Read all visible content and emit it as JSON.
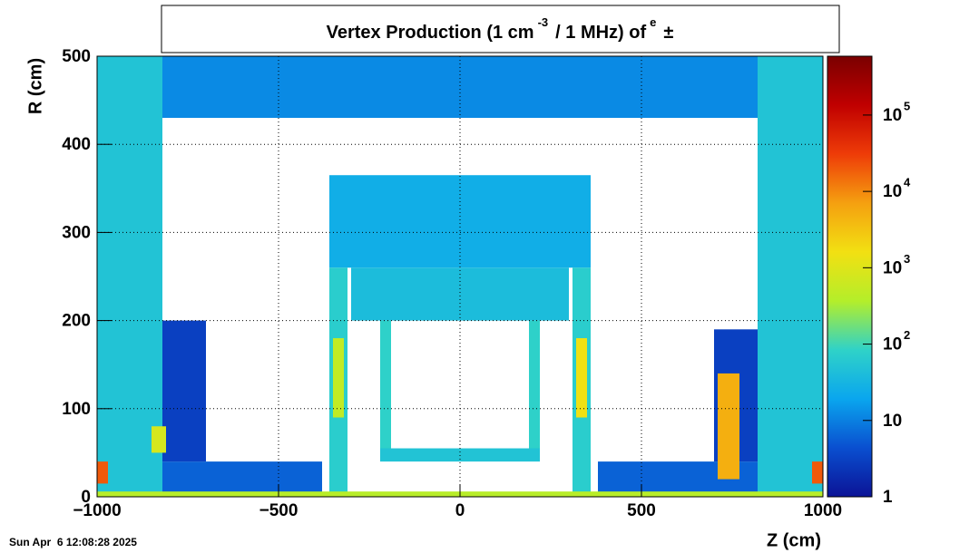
{
  "chart_data": {
    "type": "heatmap",
    "title_parts": [
      "Vertex Production (1 cm",
      "-3",
      "/ 1 MHz) of",
      "e",
      "±"
    ],
    "xlabel": "Z (cm)",
    "ylabel": "R (cm)",
    "timestamp": "Sun Apr  6 12:08:28 2025",
    "xlim": [
      -1000,
      1000
    ],
    "xticks": [
      {
        "value": -1000,
        "label": "−1000"
      },
      {
        "value": -500,
        "label": "−500"
      },
      0,
      500,
      1000
    ],
    "ylim": [
      0,
      500
    ],
    "yticks": [
      0,
      100,
      200,
      300,
      400,
      500
    ],
    "zlim": [
      1,
      590000
    ],
    "zticks": [
      1,
      10,
      {
        "value": 100,
        "label": "10",
        "sup": "2"
      },
      {
        "value": 1000,
        "label": "10",
        "sup": "3"
      },
      {
        "value": 10000,
        "label": "10",
        "sup": "4"
      },
      {
        "value": 100000,
        "label": "10",
        "sup": "5"
      }
    ],
    "log_z": true,
    "grid": true,
    "colormap": [
      "#0b1396",
      "#0a4fd0",
      "#0aa6ee",
      "#2fd2c8",
      "#b4ee2a",
      "#f2e012",
      "#f5a010",
      "#ee3c08",
      "#c00000",
      "#7a0000"
    ],
    "regions": [
      {
        "z": [
          -820,
          820
        ],
        "r": [
          430,
          500
        ],
        "value": 12
      },
      {
        "z": [
          -1000,
          -820
        ],
        "r": [
          0,
          500
        ],
        "value": 50
      },
      {
        "z": [
          820,
          1000
        ],
        "r": [
          0,
          500
        ],
        "value": 50
      },
      {
        "z": [
          -360,
          360
        ],
        "r": [
          260,
          365
        ],
        "value": 25
      },
      {
        "z": [
          -360,
          -310
        ],
        "r": [
          0,
          260
        ],
        "value": 70
      },
      {
        "z": [
          310,
          360
        ],
        "r": [
          0,
          260
        ],
        "value": 70
      },
      {
        "z": [
          -300,
          300
        ],
        "r": [
          200,
          260
        ],
        "value": 40
      },
      {
        "z": [
          -220,
          -190
        ],
        "r": [
          50,
          200
        ],
        "value": 80
      },
      {
        "z": [
          190,
          220
        ],
        "r": [
          50,
          200
        ],
        "value": 80
      },
      {
        "z": [
          -220,
          220
        ],
        "r": [
          40,
          55
        ],
        "value": 50
      },
      {
        "z": [
          -820,
          -380
        ],
        "r": [
          0,
          40
        ],
        "value": 6
      },
      {
        "z": [
          -820,
          -700
        ],
        "r": [
          40,
          200
        ],
        "value": 3
      },
      {
        "z": [
          380,
          820
        ],
        "r": [
          0,
          40
        ],
        "value": 6
      },
      {
        "z": [
          700,
          820
        ],
        "r": [
          40,
          190
        ],
        "value": 3
      },
      {
        "z": [
          -350,
          -320
        ],
        "r": [
          90,
          180
        ],
        "value": 500
      },
      {
        "z": [
          320,
          350
        ],
        "r": [
          90,
          180
        ],
        "value": 1500
      },
      {
        "z": [
          -1000,
          -970
        ],
        "r": [
          15,
          40
        ],
        "value": 20000
      },
      {
        "z": [
          970,
          1000
        ],
        "r": [
          15,
          40
        ],
        "value": 20000
      },
      {
        "z": [
          710,
          770
        ],
        "r": [
          20,
          140
        ],
        "value": 5000
      },
      {
        "z": [
          -850,
          -810
        ],
        "r": [
          50,
          80
        ],
        "value": 800
      },
      {
        "z": [
          -1000,
          1000
        ],
        "r": [
          0,
          6
        ],
        "value": 400
      }
    ]
  }
}
